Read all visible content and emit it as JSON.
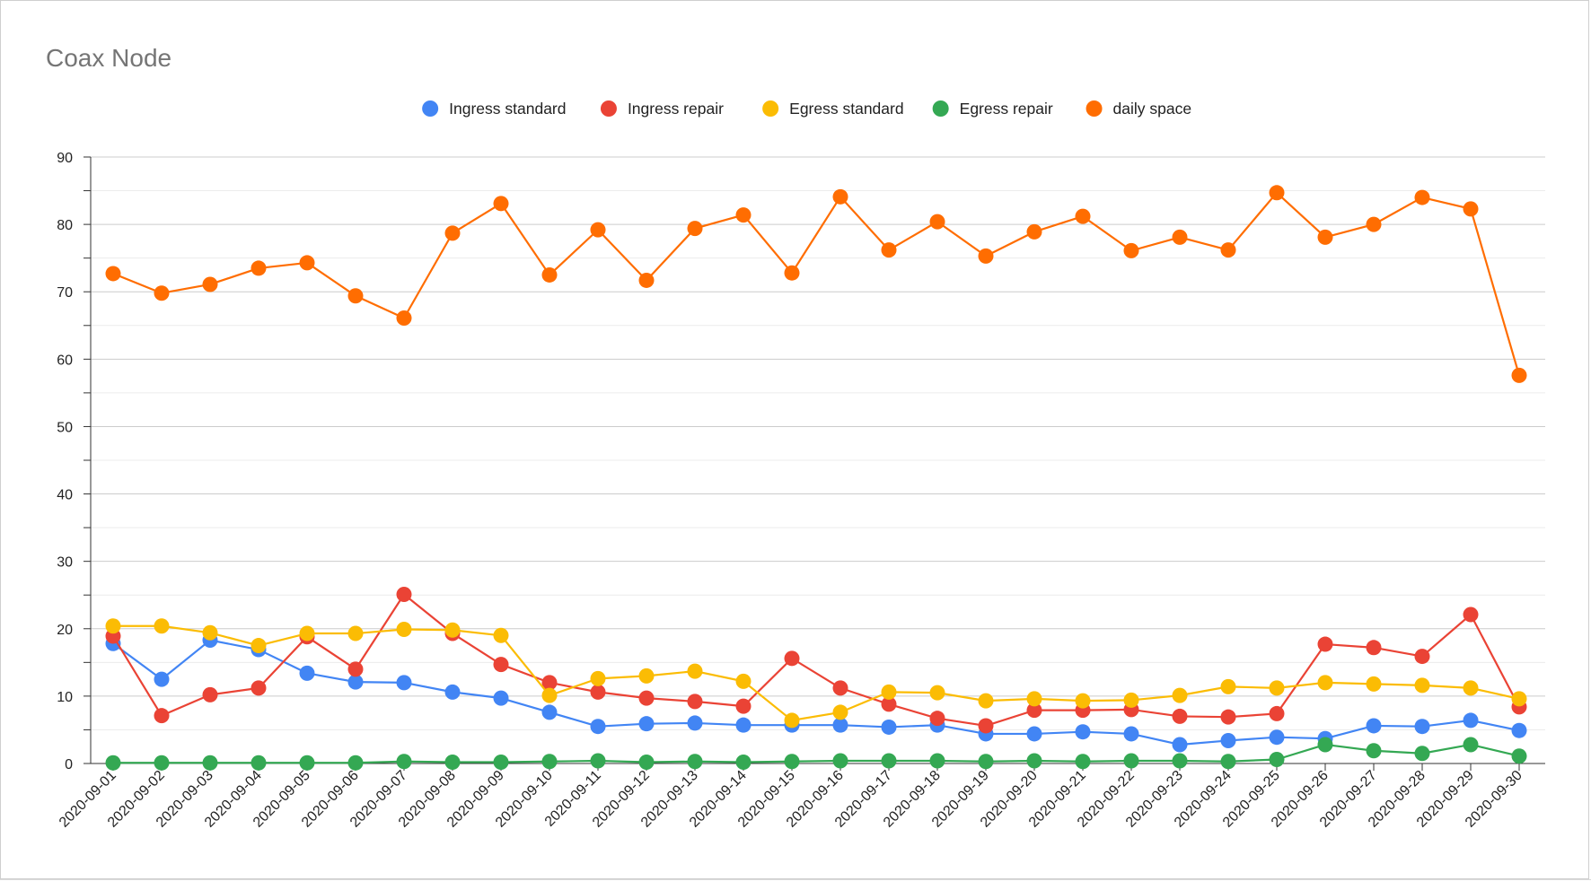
{
  "chart_data": {
    "type": "line",
    "title": "Coax Node",
    "xlabel": "",
    "ylabel": "",
    "ylim": [
      0,
      90
    ],
    "yticks": [
      0,
      10,
      20,
      30,
      40,
      50,
      60,
      70,
      80,
      90
    ],
    "grid": true,
    "legend_position": "top",
    "categories": [
      "2020-09-01",
      "2020-09-02",
      "2020-09-03",
      "2020-09-04",
      "2020-09-05",
      "2020-09-06",
      "2020-09-07",
      "2020-09-08",
      "2020-09-09",
      "2020-09-10",
      "2020-09-11",
      "2020-09-12",
      "2020-09-13",
      "2020-09-14",
      "2020-09-15",
      "2020-09-16",
      "2020-09-17",
      "2020-09-18",
      "2020-09-19",
      "2020-09-20",
      "2020-09-21",
      "2020-09-22",
      "2020-09-23",
      "2020-09-24",
      "2020-09-25",
      "2020-09-26",
      "2020-09-27",
      "2020-09-28",
      "2020-09-29",
      "2020-09-30"
    ],
    "series": [
      {
        "name": "Ingress standard",
        "color": "#4285F4",
        "values": [
          17.8,
          12.5,
          18.3,
          16.9,
          13.4,
          12.1,
          12.0,
          10.6,
          9.7,
          7.6,
          5.5,
          5.9,
          6.0,
          5.7,
          5.7,
          5.7,
          5.4,
          5.7,
          4.4,
          4.4,
          4.7,
          4.4,
          2.8,
          3.4,
          3.9,
          3.7,
          5.6,
          5.5,
          6.4,
          4.9
        ]
      },
      {
        "name": "Ingress repair",
        "color": "#EA4335",
        "values": [
          18.9,
          7.1,
          10.2,
          11.2,
          18.8,
          14.0,
          25.1,
          19.3,
          14.7,
          12.0,
          10.6,
          9.7,
          9.2,
          8.5,
          15.6,
          11.2,
          8.8,
          6.7,
          5.6,
          7.9,
          7.9,
          8.0,
          7.0,
          6.9,
          7.4,
          17.7,
          17.2,
          15.9,
          22.1,
          8.4
        ]
      },
      {
        "name": "Egress standard",
        "color": "#FBBC04",
        "values": [
          20.4,
          20.4,
          19.4,
          17.5,
          19.3,
          19.3,
          19.9,
          19.8,
          19.0,
          10.1,
          12.6,
          13.0,
          13.7,
          12.2,
          6.4,
          7.6,
          10.6,
          10.5,
          9.3,
          9.6,
          9.3,
          9.4,
          10.1,
          11.4,
          11.2,
          12.0,
          11.8,
          11.6,
          11.2,
          9.6
        ]
      },
      {
        "name": "Egress repair",
        "color": "#34A853",
        "values": [
          0.1,
          0.1,
          0.1,
          0.1,
          0.1,
          0.1,
          0.3,
          0.2,
          0.2,
          0.3,
          0.4,
          0.2,
          0.3,
          0.2,
          0.3,
          0.4,
          0.4,
          0.4,
          0.3,
          0.4,
          0.3,
          0.4,
          0.4,
          0.3,
          0.6,
          2.8,
          1.9,
          1.5,
          2.8,
          1.1
        ]
      },
      {
        "name": "daily space",
        "color": "#FF6D01",
        "values": [
          72.7,
          69.8,
          71.1,
          73.5,
          74.3,
          69.4,
          66.1,
          78.7,
          83.1,
          72.5,
          79.2,
          71.7,
          79.4,
          81.4,
          72.8,
          84.1,
          76.2,
          80.4,
          75.3,
          78.9,
          81.2,
          76.1,
          78.1,
          76.2,
          84.7,
          78.1,
          80.0,
          84.0,
          82.3,
          57.6
        ]
      }
    ]
  }
}
